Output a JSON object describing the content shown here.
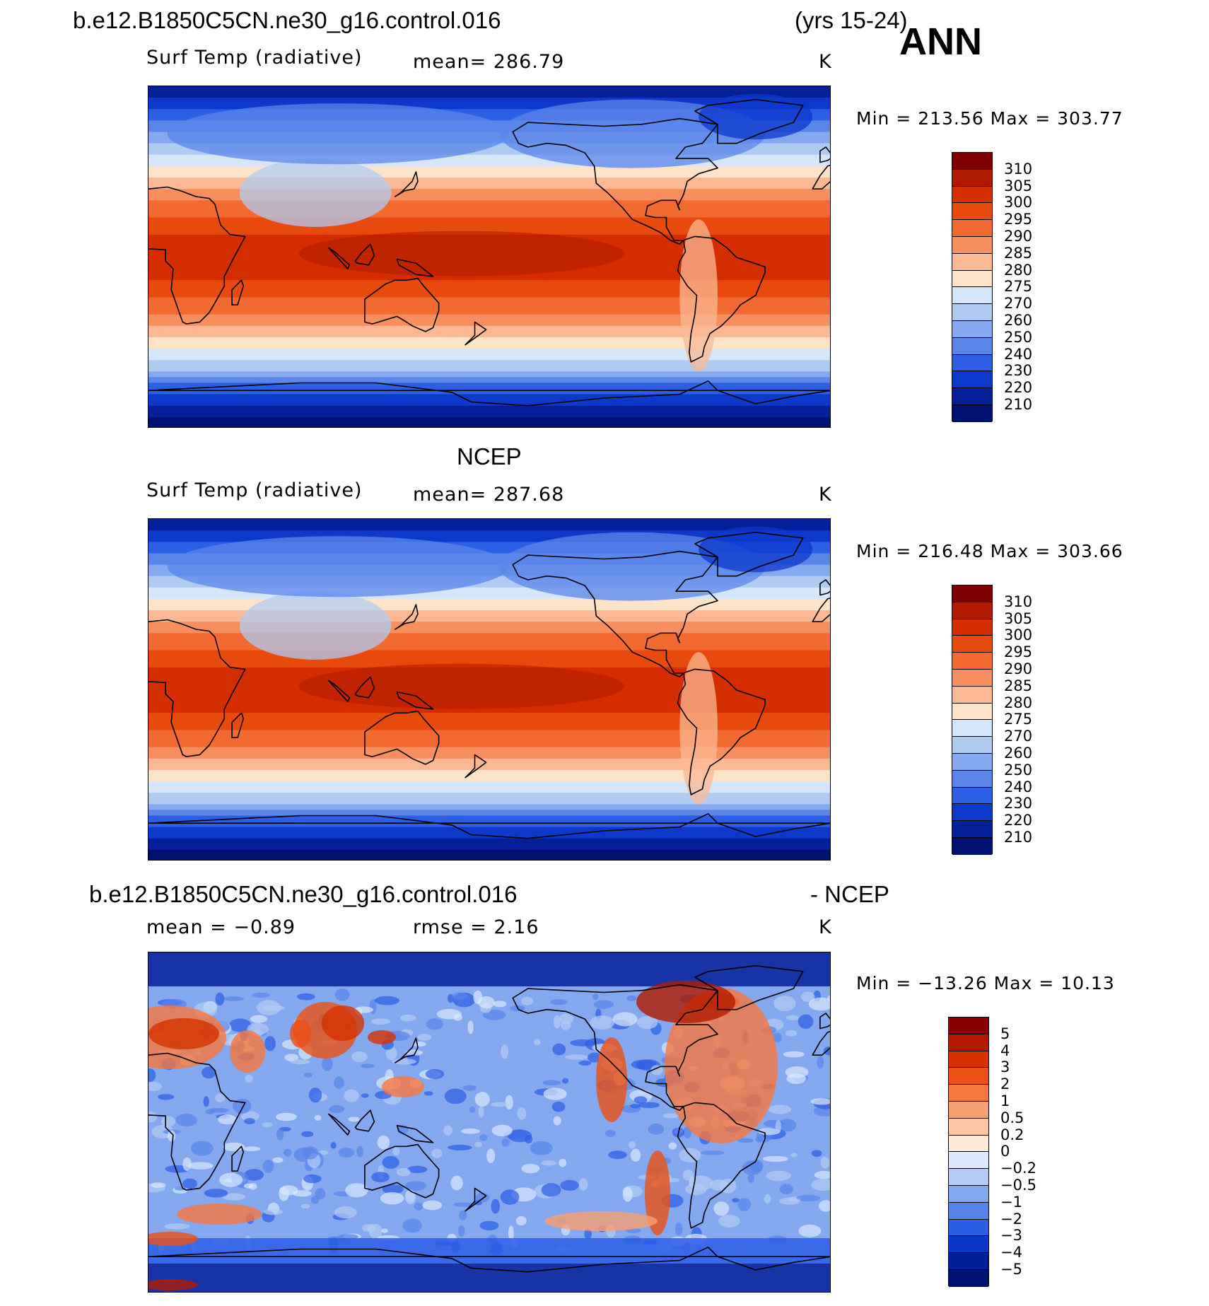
{
  "header": {
    "case_name": "b.e12.B1850C5CN.ne30_g16.control.016",
    "years": "(yrs 15-24)",
    "season": "ANN"
  },
  "panel1": {
    "variable": "Surf Temp (radiative)",
    "mean_label": "mean=  286.79",
    "units": "K",
    "minmax": "Min  =  213.56  Max  =  303.77",
    "map_name": "model-surface-temperature-map"
  },
  "panel2": {
    "title": "NCEP",
    "variable": "Surf Temp (radiative)",
    "mean_label": "mean=  287.68",
    "units": "K",
    "minmax": "Min  =  216.48  Max  =  303.66",
    "map_name": "ncep-surface-temperature-map"
  },
  "panel3": {
    "title_left": "b.e12.B1850C5CN.ne30_g16.control.016",
    "title_right": "- NCEP",
    "mean_label": "mean  =    −0.89",
    "rmse_label": "rmse  =     2.16",
    "units": "K",
    "minmax": "Min  =  −13.26  Max  =    10.13",
    "map_name": "difference-map"
  },
  "colorbar_temp": {
    "labels": [
      "310",
      "305",
      "300",
      "295",
      "290",
      "285",
      "280",
      "275",
      "270",
      "260",
      "250",
      "240",
      "230",
      "220",
      "210"
    ],
    "colors": [
      "#7f0000",
      "#b01a00",
      "#d42e00",
      "#e84a0e",
      "#f26a30",
      "#f78e5e",
      "#fbb893",
      "#fde3c8",
      "#d6e6fa",
      "#b0cbf2",
      "#85a9ee",
      "#5a86ea",
      "#2c5ee6",
      "#0c38cc",
      "#03209a",
      "#001070"
    ]
  },
  "colorbar_diff": {
    "labels": [
      "5",
      "4",
      "3",
      "2",
      "1",
      "0.5",
      "0.2",
      "0",
      "−0.2",
      "−0.5",
      "−1",
      "−2",
      "−3",
      "−4",
      "−5"
    ],
    "colors": [
      "#8a0000",
      "#b31a00",
      "#d53200",
      "#ec5014",
      "#f6763c",
      "#f99e70",
      "#fcc6a2",
      "#fee9d6",
      "#d9e8fb",
      "#b2ccf3",
      "#84a8ee",
      "#5784ea",
      "#2b5de6",
      "#0b37cb",
      "#031f98",
      "#001070"
    ]
  }
}
